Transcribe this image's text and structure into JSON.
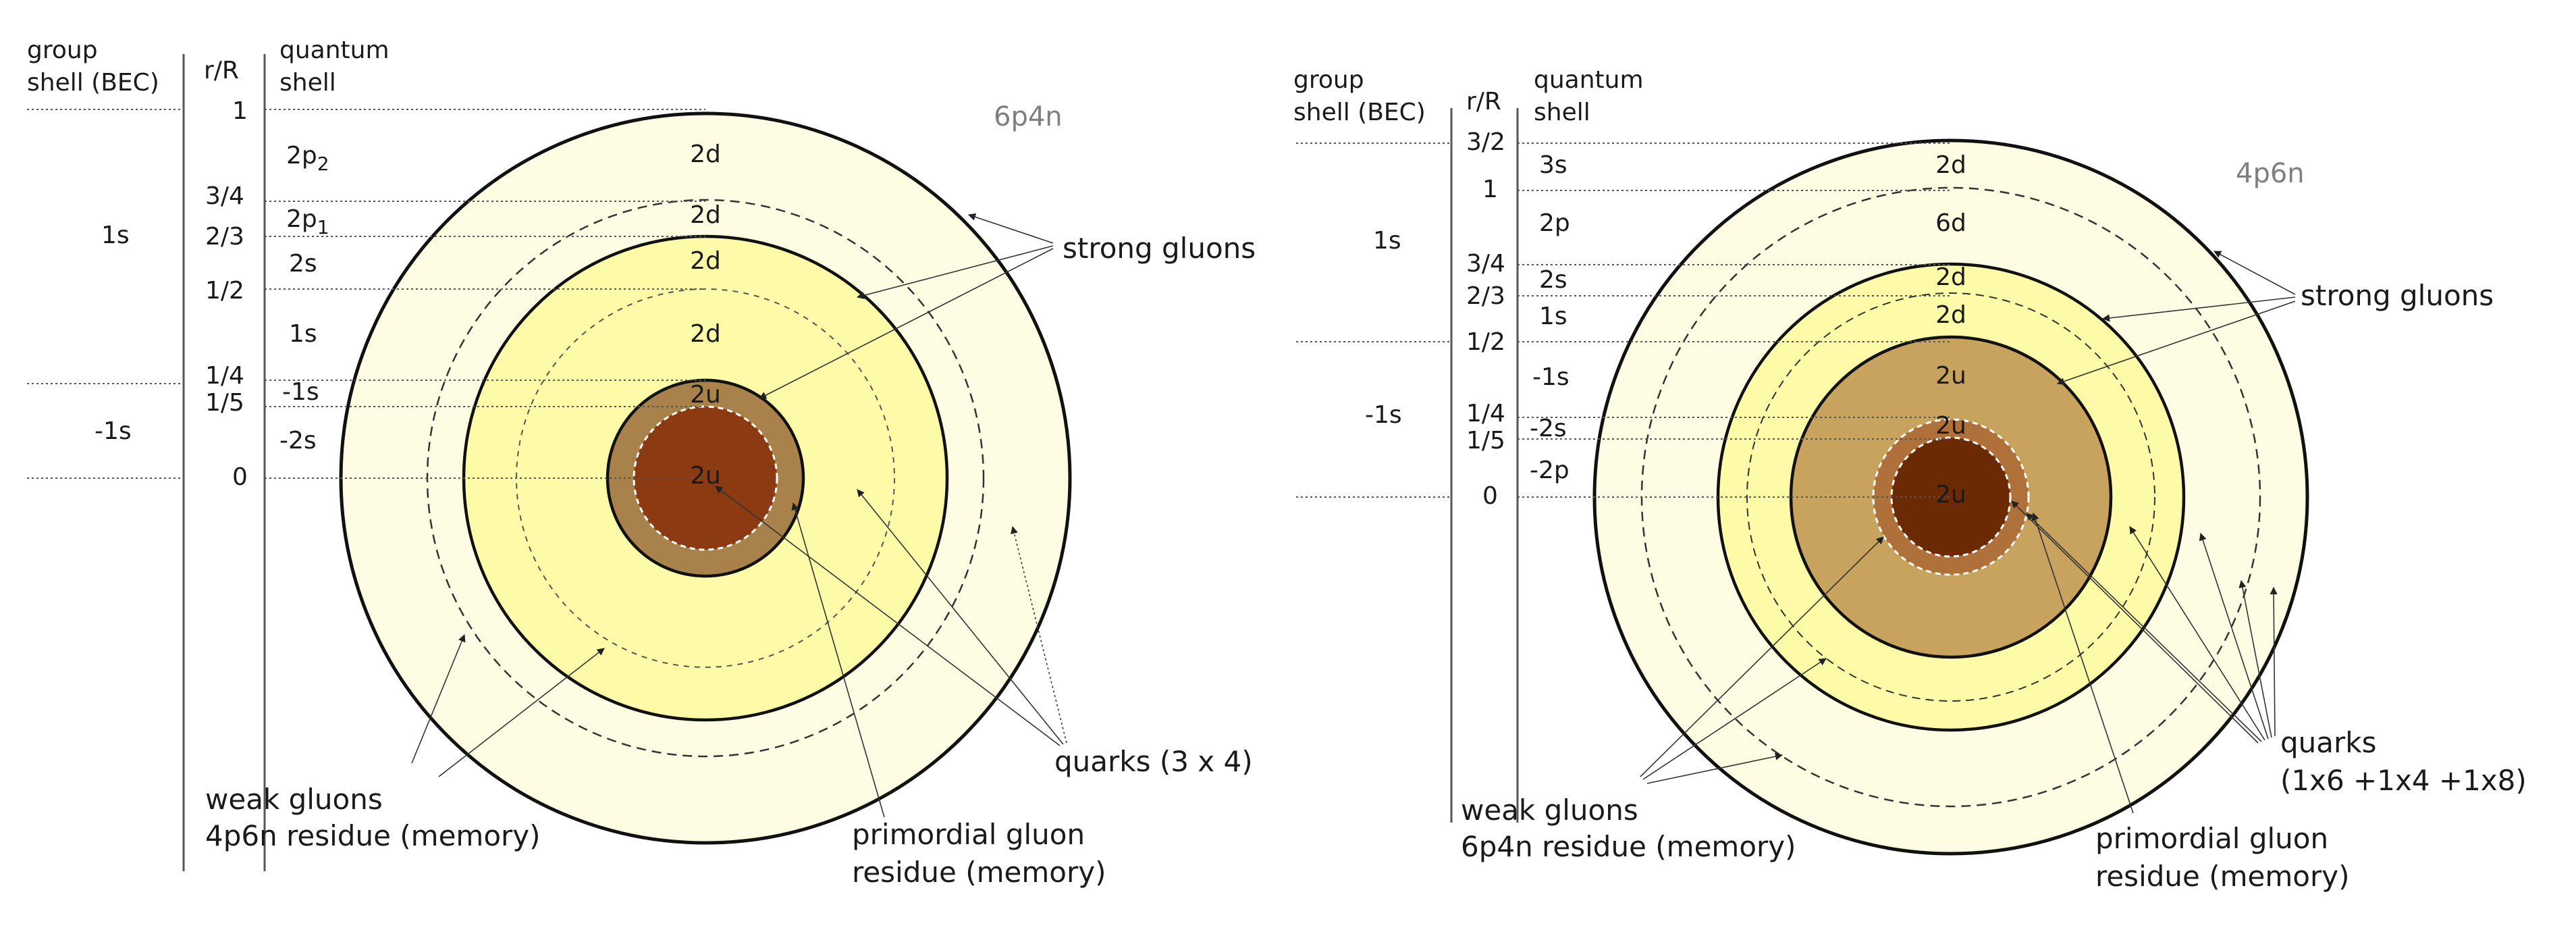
{
  "left": {
    "header": {
      "group_line1": "group",
      "group_line2": "shell (BEC)",
      "rR": "r/R",
      "quantum_line1": "quantum",
      "quantum_line2": "shell"
    },
    "group_shells": [
      "1s",
      "-1s"
    ],
    "ratios": [
      "1",
      "3/4",
      "2/3",
      "1/2",
      "1/4",
      "1/5",
      "0"
    ],
    "quantum_shells": [
      {
        "main": "2p",
        "sub": "2"
      },
      {
        "main": "2p",
        "sub": "1"
      },
      {
        "main": "2s",
        "sub": ""
      },
      {
        "main": "1s",
        "sub": ""
      },
      {
        "main": "-1s",
        "sub": ""
      },
      {
        "main": "-2s",
        "sub": ""
      }
    ],
    "shell_labels": [
      "2d",
      "2d",
      "2d",
      "2d",
      "2u",
      "2u"
    ],
    "title": "6p4n",
    "annotations": {
      "strong_gluons": "strong gluons",
      "quarks": "quarks (3 x 4)",
      "weak_line1": "weak gluons",
      "weak_line2": "4p6n residue (memory)",
      "primordial_line1": "primordial gluon",
      "primordial_line2": "residue (memory)"
    },
    "colors": {
      "outer": "#fefde4",
      "middle": "#fefba8",
      "core_ring": "#a8824a",
      "core": "#8c3a12"
    }
  },
  "right": {
    "header": {
      "group_line1": "group",
      "group_line2": "shell (BEC)",
      "rR": "r/R",
      "quantum_line1": "quantum",
      "quantum_line2": "shell"
    },
    "group_shells": [
      "1s",
      "-1s"
    ],
    "ratios": [
      "3/2",
      "1",
      "3/4",
      "2/3",
      "1/2",
      "1/4",
      "1/5",
      "0"
    ],
    "quantum_shells": [
      {
        "main": "3s",
        "sub": ""
      },
      {
        "main": "2p",
        "sub": ""
      },
      {
        "main": "2s",
        "sub": ""
      },
      {
        "main": "1s",
        "sub": ""
      },
      {
        "main": "-1s",
        "sub": ""
      },
      {
        "main": "-2s",
        "sub": ""
      },
      {
        "main": "-2p",
        "sub": ""
      }
    ],
    "shell_labels": [
      "2d",
      "6d",
      "2d",
      "2d",
      "2u",
      "2u",
      "2u"
    ],
    "title": "4p6n",
    "annotations": {
      "strong_gluons": "strong gluons",
      "quarks_line1": "quarks",
      "quarks_line2": "(1x6 +1x4 +1x8)",
      "weak_line1": "weak gluons",
      "weak_line2": "6p4n residue (memory)",
      "primordial_line1": "primordial gluon",
      "primordial_line2": "residue (memory)"
    },
    "colors": {
      "outer": "#fefde4",
      "middle": "#fefba8",
      "inner": "#c8a35e",
      "core_ring": "#b0703a",
      "core": "#6b2a04"
    }
  }
}
